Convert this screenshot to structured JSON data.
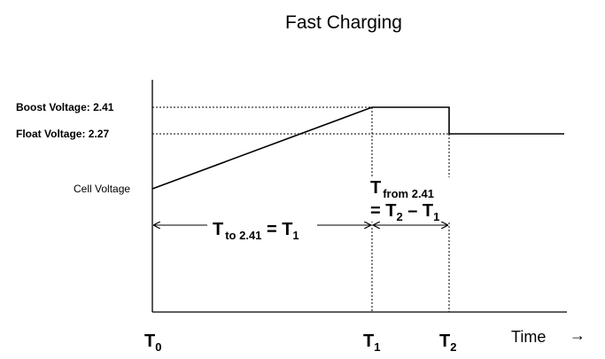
{
  "title": "Fast Charging",
  "levels": {
    "boost_label": "Boost Voltage: 2.41",
    "float_label": "Float Voltage: 2.27",
    "cell_label": "Cell Voltage"
  },
  "intervals": {
    "t_to": {
      "main": "T",
      "sub": "to 2.41",
      "eq": " = T",
      "eq_sub": "1"
    },
    "t_from": {
      "main": "T",
      "sub": "from 2.41",
      "eq_prefix": "= T",
      "eq_sub_a": "2",
      "eq_mid": " – T",
      "eq_sub_b": "1"
    }
  },
  "time_ticks": [
    {
      "main": "T",
      "sub": "0"
    },
    {
      "main": "T",
      "sub": "1"
    },
    {
      "main": "T",
      "sub": "2"
    }
  ],
  "x_axis_label": "Time",
  "x_axis_arrow": "→"
}
